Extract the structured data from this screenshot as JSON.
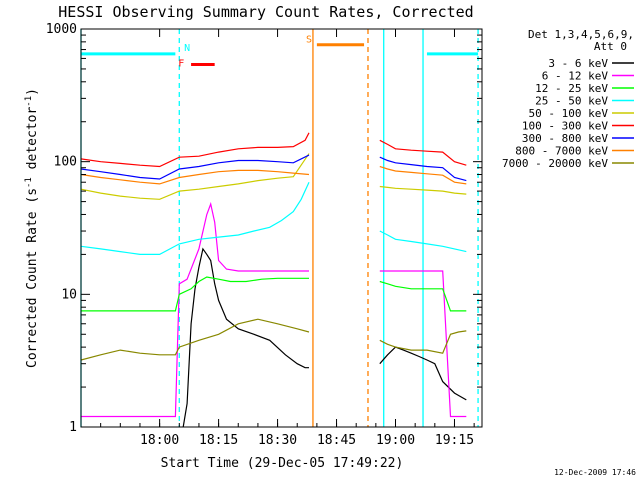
{
  "chart_data": {
    "type": "line",
    "title": "HESSI Observing Summary Count Rates, Corrected",
    "xlabel": "Start Time (29-Dec-05 17:49:22)",
    "ylabel_main": "Corrected Count Rate (s",
    "ylabel_sup1": "-1",
    "ylabel_mid": " detector",
    "ylabel_sup2": "-1",
    "ylabel_end": ")",
    "yscale": "log",
    "xlim": [
      -10,
      92
    ],
    "ylim": [
      1,
      1000
    ],
    "x_ticks": [
      {
        "value": 10,
        "label": "18:00"
      },
      {
        "value": 25,
        "label": "18:15"
      },
      {
        "value": 40,
        "label": "18:30"
      },
      {
        "value": 55,
        "label": "18:45"
      },
      {
        "value": 70,
        "label": "19:00"
      },
      {
        "value": 85,
        "label": "19:15"
      }
    ],
    "y_ticks": [
      {
        "value": 1,
        "label": "1"
      },
      {
        "value": 10,
        "label": "10"
      },
      {
        "value": 100,
        "label": "100"
      },
      {
        "value": 1000,
        "label": "1000"
      }
    ],
    "legend_position": "right",
    "legend_header": [
      "Det 1,3,4,5,6,9,",
      "Att 0"
    ],
    "timestamp": "12-Dec-2009 17:46",
    "series": [
      {
        "name": "3 - 6 keV",
        "color": "#000000",
        "x": [
          0,
          16,
          17,
          18,
          19,
          20,
          21,
          22,
          23,
          24,
          25,
          27,
          30,
          34,
          38,
          42,
          45,
          47,
          48,
          66,
          68,
          70,
          72,
          74,
          76,
          78,
          80,
          82,
          85,
          88
        ],
        "y": [
          1,
          1,
          1.5,
          6,
          11,
          16,
          22,
          20,
          18,
          12,
          9,
          6.5,
          5.5,
          5,
          4.5,
          3.5,
          3,
          2.8,
          2.8,
          3,
          3.5,
          4,
          3.8,
          3.6,
          3.4,
          3.2,
          3.0,
          2.2,
          1.8,
          1.6
        ]
      },
      {
        "name": "6 - 12 keV",
        "color": "#ff00ff",
        "x": [
          -10,
          -5,
          0,
          5,
          10,
          14,
          15,
          17,
          20,
          22,
          23,
          24,
          25,
          27,
          30,
          35,
          40,
          45,
          48,
          66,
          68,
          70,
          75,
          80,
          82,
          84,
          88
        ],
        "y": [
          1.2,
          1.2,
          1.2,
          1.2,
          1.2,
          1.2,
          12,
          13,
          22,
          40,
          48,
          35,
          18,
          15.5,
          15,
          15,
          15,
          15,
          15,
          15,
          15,
          15,
          15,
          15,
          15,
          1.2,
          1.2
        ]
      },
      {
        "name": "12 - 25 keV",
        "color": "#00ff00",
        "x": [
          -10,
          -5,
          0,
          5,
          10,
          14,
          15,
          18,
          20,
          22,
          25,
          28,
          32,
          36,
          40,
          44,
          48,
          66,
          68,
          70,
          74,
          78,
          82,
          84,
          86,
          88
        ],
        "y": [
          7.5,
          7.5,
          7.5,
          7.5,
          7.5,
          7.5,
          10,
          11,
          12.5,
          13.5,
          13,
          12.5,
          12.5,
          13,
          13.2,
          13.2,
          13.2,
          12.5,
          12,
          11.5,
          11,
          11,
          11,
          7.5,
          7.5,
          7.5
        ]
      },
      {
        "name": "25 - 50 keV",
        "color": "#00ffff",
        "x": [
          -10,
          -5,
          0,
          5,
          10,
          15,
          20,
          25,
          30,
          34,
          38,
          41,
          44,
          46,
          48,
          66,
          68,
          70,
          74,
          78,
          82,
          85,
          88
        ],
        "y": [
          23,
          22,
          21,
          20,
          20,
          24,
          26,
          27,
          28,
          30,
          32,
          36,
          42,
          52,
          70,
          30,
          28,
          26,
          25,
          24,
          23,
          22,
          21
        ]
      },
      {
        "name": "50 - 100 keV",
        "color": "#cccc00",
        "x": [
          -10,
          -5,
          0,
          5,
          10,
          15,
          20,
          25,
          30,
          35,
          40,
          44,
          48,
          66,
          68,
          70,
          74,
          78,
          82,
          85,
          88
        ],
        "y": [
          62,
          58,
          55,
          53,
          52,
          60,
          62,
          65,
          68,
          72,
          75,
          77,
          115,
          65,
          64,
          63,
          62,
          61,
          60,
          58,
          57
        ]
      },
      {
        "name": "100 - 300 keV",
        "color": "#ff0000",
        "x": [
          -10,
          -5,
          0,
          5,
          10,
          15,
          20,
          25,
          30,
          35,
          40,
          44,
          47,
          48,
          66,
          68,
          70,
          74,
          78,
          82,
          85,
          88
        ],
        "y": [
          105,
          100,
          97,
          94,
          92,
          108,
          110,
          118,
          125,
          128,
          128,
          130,
          145,
          165,
          145,
          135,
          125,
          122,
          120,
          118,
          100,
          94
        ]
      },
      {
        "name": "300 - 800 keV",
        "color": "#0000ff",
        "x": [
          -10,
          -5,
          0,
          5,
          10,
          15,
          20,
          25,
          30,
          35,
          40,
          44,
          48,
          66,
          68,
          70,
          74,
          78,
          82,
          85,
          88
        ],
        "y": [
          88,
          84,
          80,
          76,
          74,
          88,
          92,
          98,
          102,
          102,
          100,
          98,
          112,
          108,
          102,
          98,
          95,
          92,
          90,
          76,
          72
        ]
      },
      {
        "name": "800 - 7000 keV",
        "color": "#ff8000",
        "x": [
          -10,
          -5,
          0,
          5,
          10,
          15,
          20,
          25,
          30,
          35,
          40,
          44,
          48,
          66,
          68,
          70,
          74,
          78,
          82,
          85,
          88
        ],
        "y": [
          80,
          76,
          73,
          70,
          68,
          76,
          80,
          84,
          86,
          86,
          84,
          82,
          80,
          92,
          88,
          85,
          83,
          81,
          79,
          70,
          68
        ]
      },
      {
        "name": "7000 - 20000 keV",
        "color": "#888800",
        "x": [
          -10,
          -5,
          0,
          5,
          10,
          14,
          15,
          20,
          25,
          30,
          35,
          40,
          45,
          48,
          66,
          68,
          70,
          74,
          78,
          82,
          84,
          86,
          88
        ],
        "y": [
          3.2,
          3.5,
          3.8,
          3.6,
          3.5,
          3.5,
          4,
          4.5,
          5,
          6,
          6.5,
          6,
          5.5,
          5.2,
          4.5,
          4.2,
          4.0,
          3.8,
          3.8,
          3.6,
          5,
          5.2,
          5.3
        ]
      }
    ],
    "vlines": [
      {
        "x": -10,
        "color": "#00ffff",
        "style": "solid"
      },
      {
        "x": 15,
        "color": "#00ffff",
        "style": "dashed"
      },
      {
        "x": 49,
        "color": "#ff8000",
        "style": "solid"
      },
      {
        "x": 63,
        "color": "#ff8000",
        "style": "dashed"
      },
      {
        "x": 67,
        "color": "#00ffff",
        "style": "solid"
      },
      {
        "x": 77,
        "color": "#00ffff",
        "style": "solid"
      },
      {
        "x": 91,
        "color": "#00ffff",
        "style": "dashed"
      }
    ],
    "bars": [
      {
        "x1": -10,
        "x2": 14,
        "y": 650,
        "color": "#00ffff",
        "thickness": 3
      },
      {
        "x1": 18,
        "x2": 24,
        "y": 540,
        "color": "#ff0000",
        "thickness": 3
      },
      {
        "x1": 50,
        "x2": 62,
        "y": 760,
        "color": "#ff8000",
        "thickness": 3
      },
      {
        "x1": 78,
        "x2": 91,
        "y": 650,
        "color": "#00ffff",
        "thickness": 3
      }
    ],
    "flag_labels": [
      {
        "text": "N",
        "x": 17,
        "y": 680,
        "color": "#00ffff"
      },
      {
        "text": "F",
        "x": 15.5,
        "y": 520,
        "color": "#ff0000"
      },
      {
        "text": "S",
        "x": 48,
        "y": 790,
        "color": "#ff8000"
      }
    ]
  }
}
